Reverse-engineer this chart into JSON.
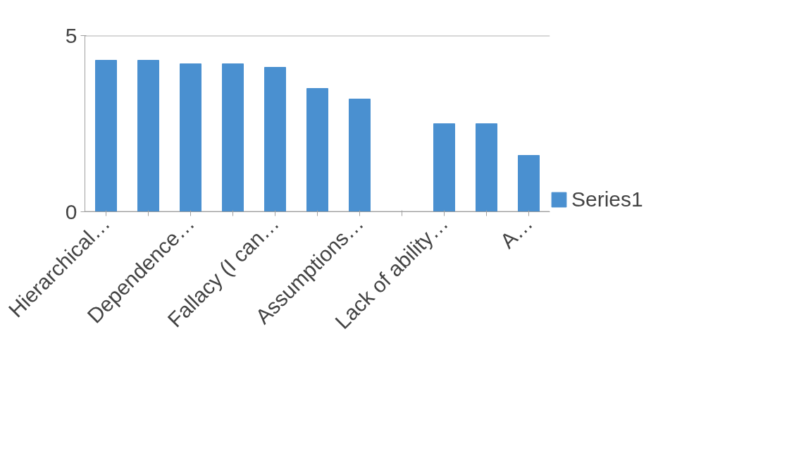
{
  "chart_data": {
    "type": "bar",
    "categories": [
      "Hierarchical…",
      null,
      "Dependence…",
      null,
      "Fallacy (I can…",
      null,
      "Assumptions…",
      null,
      "Lack of ability…",
      null,
      "A…"
    ],
    "series": [
      {
        "name": "Series1",
        "color": "#4a90d0",
        "values": [
          4.3,
          4.3,
          4.2,
          4.2,
          4.1,
          3.5,
          3.2,
          null,
          2.5,
          2.5,
          1.6
        ]
      }
    ],
    "ylim": [
      0,
      5
    ],
    "yticks": [
      0,
      5
    ],
    "grid": "y",
    "legend": "right"
  }
}
